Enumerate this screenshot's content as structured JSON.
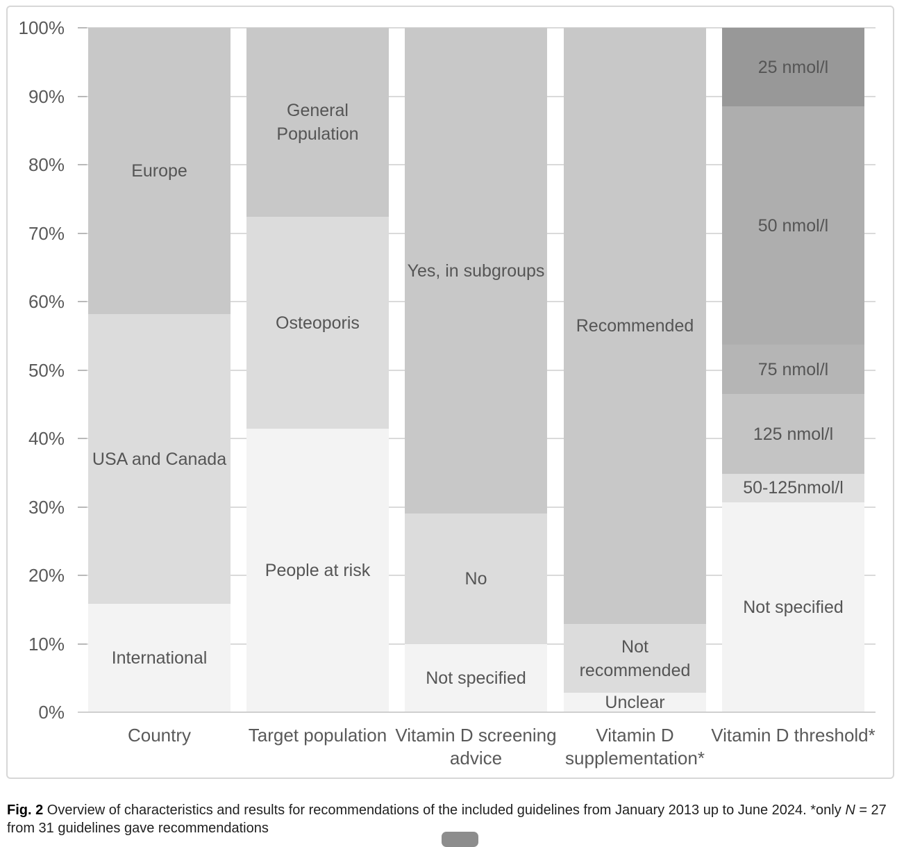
{
  "figure": {
    "caption": {
      "label": "Fig. 2",
      "text_before_italic": " Overview of characteristics and results for recommendations of the included guidelines from January 2013 up to June 2024. *only ",
      "italic": "N",
      "text_after_italic": " = 27 from 31 guidelines gave recommendations"
    }
  },
  "chart_data": {
    "type": "bar",
    "subtype": "stacked-100-percent",
    "title": "",
    "xlabel": "",
    "ylabel": "",
    "ylim": [
      0,
      100
    ],
    "grid": true,
    "legend_position": "none (labels inside segments)",
    "yticks": [
      {
        "value": 0,
        "label": "0%"
      },
      {
        "value": 10,
        "label": "10%"
      },
      {
        "value": 20,
        "label": "20%"
      },
      {
        "value": 30,
        "label": "30%"
      },
      {
        "value": 40,
        "label": "40%"
      },
      {
        "value": 50,
        "label": "50%"
      },
      {
        "value": 60,
        "label": "60%"
      },
      {
        "value": 70,
        "label": "70%"
      },
      {
        "value": 80,
        "label": "80%"
      },
      {
        "value": 90,
        "label": "90%"
      },
      {
        "value": 100,
        "label": "100%"
      }
    ],
    "categories": [
      "Country",
      "Target population",
      "Vitamin D screening advice",
      "Vitamin D supplementation*",
      "Vitamin D threshold*"
    ],
    "bars": [
      {
        "category": "Country",
        "segments": [
          {
            "label": "International",
            "value": 15.8,
            "color": "lightest"
          },
          {
            "label": "USA and Canada",
            "value": 42.4,
            "color": "light"
          },
          {
            "label": "Europe",
            "value": 41.8,
            "color": "medium"
          }
        ]
      },
      {
        "category": "Target population",
        "segments": [
          {
            "label": "People at risk",
            "value": 41.4,
            "color": "lightest"
          },
          {
            "label": "Osteoporis",
            "value": 31.0,
            "color": "light"
          },
          {
            "label": "General Population",
            "value": 27.6,
            "color": "medium"
          }
        ]
      },
      {
        "category": "Vitamin D screening advice",
        "segments": [
          {
            "label": "Not specified",
            "value": 10.0,
            "color": "lightest"
          },
          {
            "label": "No",
            "value": 19.0,
            "color": "light"
          },
          {
            "label": "Yes, in subgroups",
            "value": 71.0,
            "color": "medium"
          }
        ]
      },
      {
        "category": "Vitamin D supplementation*",
        "segments": [
          {
            "label": "Unclear",
            "value": 2.8,
            "color": "lightest"
          },
          {
            "label": "Not recommended",
            "value": 10.1,
            "color": "light"
          },
          {
            "label": "Recommended",
            "value": 87.1,
            "color": "medium"
          }
        ]
      },
      {
        "category": "Vitamin D threshold*",
        "segments": [
          {
            "label": "Not specified",
            "value": 30.7,
            "color": "lightest"
          },
          {
            "label": "50-125nmol/l",
            "value": 4.1,
            "color": "gray50_125"
          },
          {
            "label": "125 nmol/l",
            "value": 11.7,
            "color": "gray125"
          },
          {
            "label": "75 nmol/l",
            "value": 7.2,
            "color": "gray75"
          },
          {
            "label": "50 nmol/l",
            "value": 34.8,
            "color": "gray50"
          },
          {
            "label": "25 nmol/l",
            "value": 11.5,
            "color": "gray25"
          }
        ]
      }
    ],
    "colors": {
      "medium": "#c8c8c8",
      "light": "#dcdcdc",
      "lightest": "#f3f3f3",
      "gray25": "#989898",
      "gray50": "#aeaeae",
      "gray75": "#b5b5b5",
      "gray125": "#c4c4c4",
      "gray50_125": "#dfdfdf"
    }
  }
}
